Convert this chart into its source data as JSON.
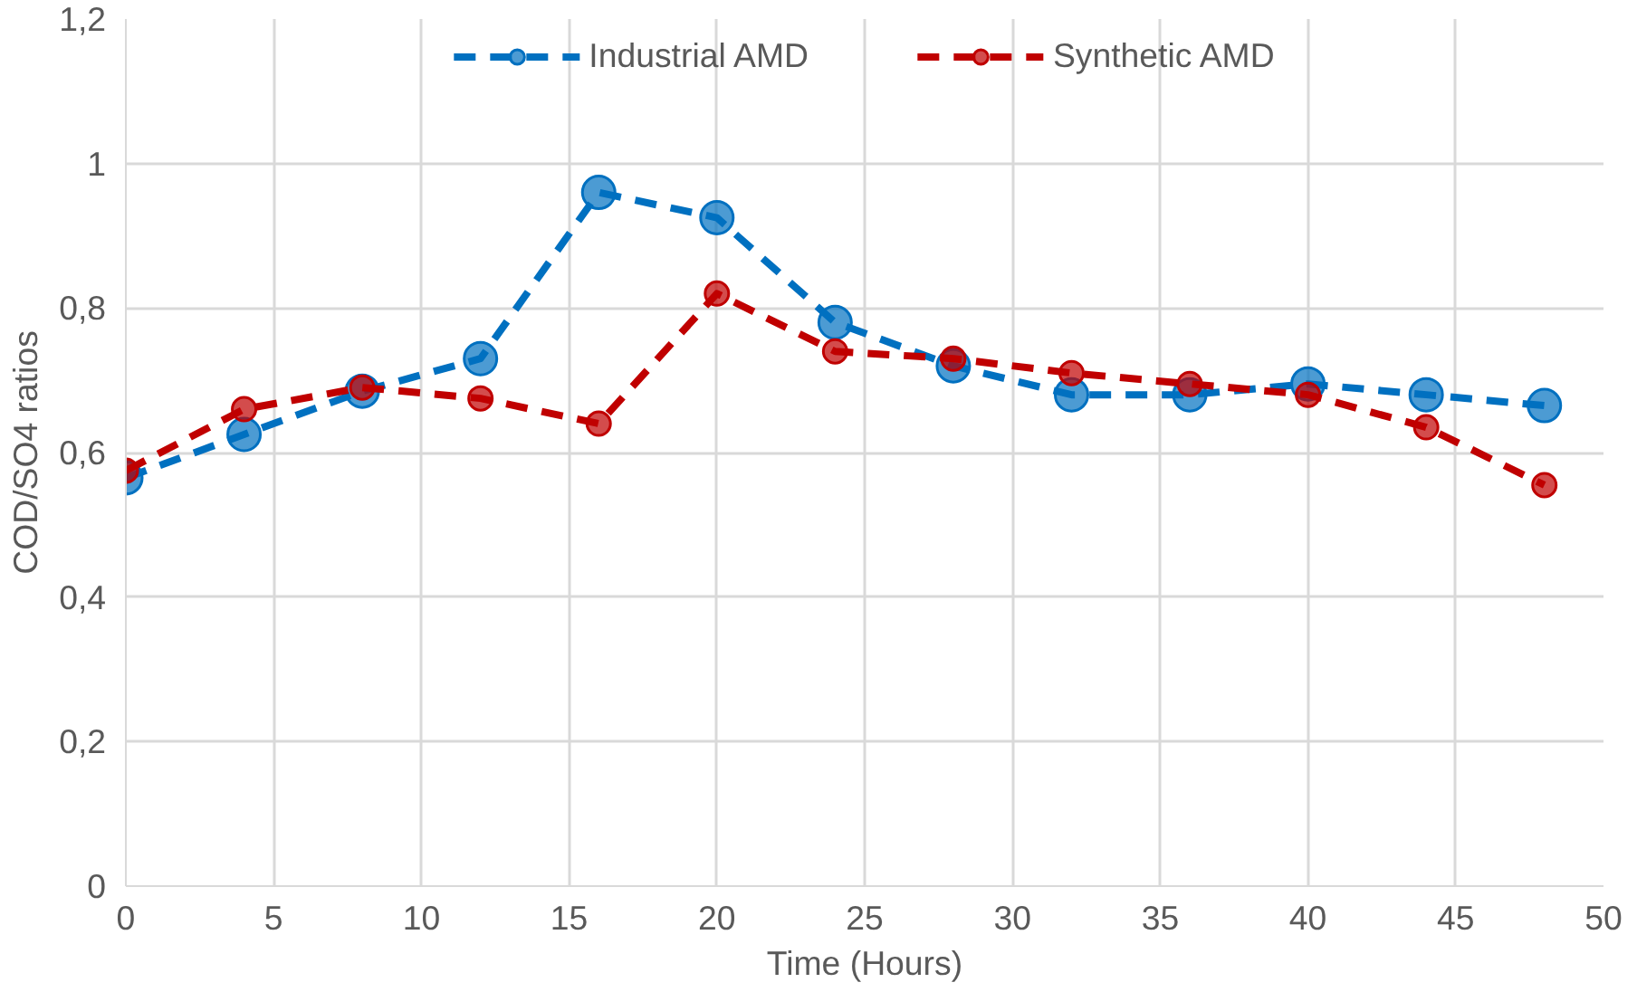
{
  "chart_data": {
    "type": "line",
    "xlabel": "Time (Hours)",
    "ylabel": "COD/SO4 ratios",
    "x": [
      0,
      4,
      8,
      12,
      16,
      20,
      24,
      28,
      32,
      36,
      40,
      44,
      48
    ],
    "series": [
      {
        "name": "Industrial AMD",
        "color": "#0070c0",
        "values": [
          0.565,
          0.625,
          0.685,
          0.73,
          0.96,
          0.925,
          0.78,
          0.72,
          0.68,
          0.68,
          0.695,
          0.68,
          0.665
        ]
      },
      {
        "name": "Synthetic AMD",
        "color": "#c00000",
        "values": [
          0.575,
          0.66,
          0.69,
          0.675,
          0.64,
          0.82,
          0.74,
          0.73,
          0.71,
          0.695,
          0.68,
          0.635,
          0.555
        ]
      }
    ],
    "xlim": [
      0,
      50
    ],
    "xticks": [
      0,
      5,
      10,
      15,
      20,
      25,
      30,
      35,
      40,
      45,
      50
    ],
    "ylim": [
      0,
      1.2
    ],
    "yticks": [
      0,
      {
        "value": 0.2,
        "label": "0,2"
      },
      {
        "value": 0.4,
        "label": "0,4"
      },
      {
        "value": 0.6,
        "label": "0,6"
      },
      {
        "value": 0.8,
        "label": "0,8"
      },
      1,
      {
        "value": 1.2,
        "label": "1,2"
      }
    ],
    "grid": true,
    "legend": "top",
    "marker": "circle",
    "line_style": "dashed"
  }
}
